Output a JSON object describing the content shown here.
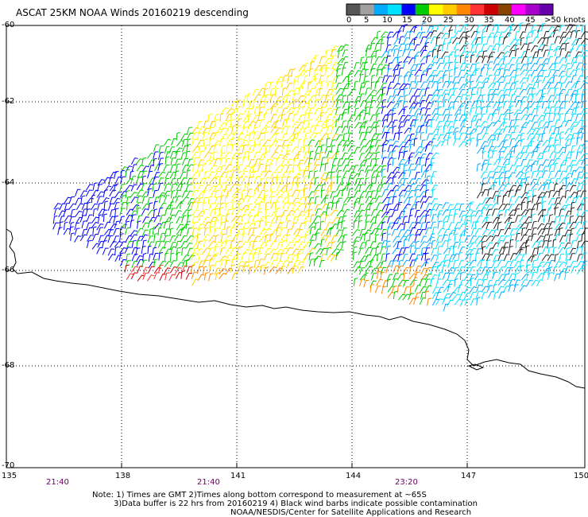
{
  "title": "ASCAT 25KM NOAA Winds 20160219 descending",
  "legend": {
    "labels": [
      "0",
      "5",
      "10",
      "15",
      "20",
      "25",
      "30",
      "35",
      "40",
      "45",
      ">50 knots"
    ],
    "colors": [
      "#555555",
      "#a0a0a0",
      "#00aaff",
      "#00e0ff",
      "#0000ff",
      "#00cc00",
      "#ffff00",
      "#ffcc00",
      "#ff8800",
      "#ff3333",
      "#cc0000",
      "#884400",
      "#ff00ff",
      "#aa00cc",
      "#6600aa"
    ]
  },
  "axes": {
    "lat_labels": [
      "-60",
      "-62",
      "-64",
      "-66",
      "-68",
      "-70"
    ],
    "lon_labels": [
      "135",
      "138",
      "141",
      "144",
      "147",
      "150"
    ]
  },
  "times": [
    "21:40",
    "21:40",
    "23:20"
  ],
  "notes": [
    "Note: 1) Times are GMT 2)Times along bottom correspond to measurement at ~65S",
    "3)Data buffer is 22 hrs from 20160219 4) Black wind barbs indicate possible contamination",
    "NOAA/NESDIS/Center for Satellite Applications and Research"
  ]
}
